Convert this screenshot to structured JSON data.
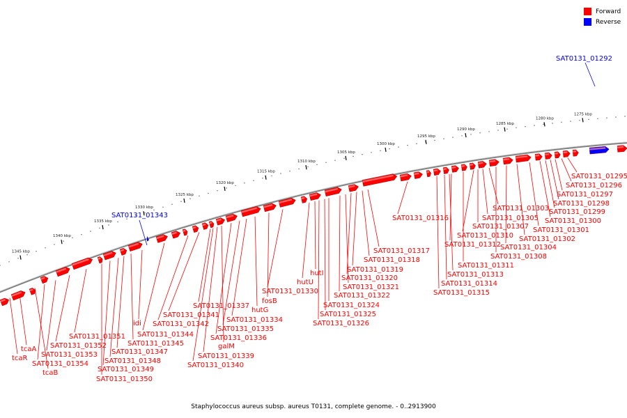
{
  "caption": "Staphylococcus aureus subsp. aureus T0131, complete genome. - 0..2913900",
  "legend": [
    {
      "label": "Forward",
      "color": "#ff0000"
    },
    {
      "label": "Reverse",
      "color": "#0000ff"
    }
  ],
  "colors": {
    "forward": "#ff0000",
    "reverse": "#0000ff",
    "backbone": "#808080"
  },
  "ticks": [
    "1275 kbp",
    "1280 kbp",
    "1285 kbp",
    "1290 kbp",
    "1295 kbp",
    "1300 kbp",
    "1305 kbp",
    "1310 kbp",
    "1315 kbp",
    "1320 kbp",
    "1325 kbp",
    "1330 kbp",
    "1335 kbp",
    "1340 kbp",
    "1345 kbp"
  ],
  "reverse_genes": [
    "SAT0131_01292",
    "SAT0131_01343"
  ],
  "forward_gene_labels": [
    "SAT0131_01295",
    "SAT0131_01296",
    "SAT0131_01297",
    "SAT0131_01298",
    "SAT0131_01299",
    "SAT0131_01300",
    "SAT0131_01301",
    "SAT0131_01302",
    "SAT0131_01303",
    "SAT0131_01304",
    "SAT0131_01305",
    "SAT0131_01307",
    "SAT0131_01308",
    "SAT0131_01310",
    "SAT0131_01311",
    "SAT0131_01312",
    "SAT0131_01313",
    "SAT0131_01314",
    "SAT0131_01315",
    "SAT0131_01316",
    "SAT0131_01317",
    "SAT0131_01318",
    "SAT0131_01319",
    "SAT0131_01320",
    "SAT0131_01321",
    "SAT0131_01322",
    "SAT0131_01324",
    "SAT0131_01325",
    "SAT0131_01326",
    "hutI",
    "hutU",
    "SAT0131_01330",
    "fosB",
    "hutG",
    "SAT0131_01334",
    "SAT0131_01335",
    "SAT0131_01336",
    "SAT0131_01337",
    "galM",
    "SAT0131_01339",
    "SAT0131_01340",
    "SAT0131_01341",
    "SAT0131_01342",
    "SAT0131_01344",
    "idi",
    "SAT0131_01345",
    "SAT0131_01347",
    "SAT0131_01348",
    "SAT0131_01349",
    "SAT0131_01350",
    "SAT0131_01351",
    "SAT0131_01352",
    "SAT0131_01353",
    "SAT0131_01354",
    "tcaA",
    "tcaR",
    "tcaB"
  ]
}
